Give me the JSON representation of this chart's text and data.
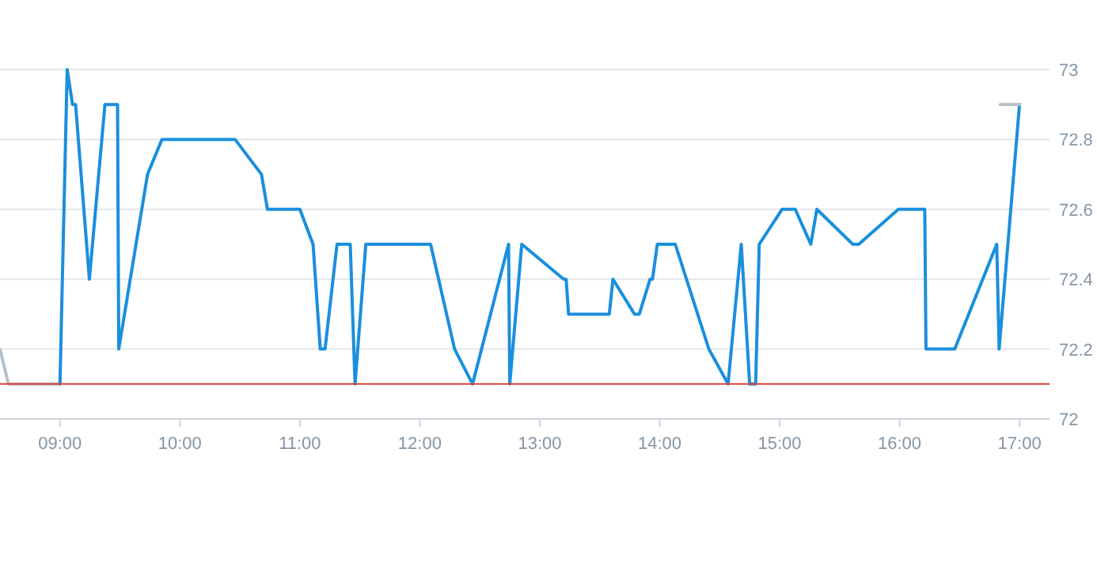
{
  "chart_data": {
    "type": "line",
    "series": [
      {
        "color": "#b5c1ca",
        "x": [
          8.5,
          8.57,
          9.0
        ],
        "values": [
          72.2,
          72.1,
          72.1
        ]
      },
      {
        "color": "#1a8fdd",
        "x": [
          9.0,
          9.06,
          9.105,
          9.13,
          9.245,
          9.375,
          9.48,
          9.49,
          9.73,
          9.85,
          10.46,
          10.68,
          10.73,
          11.0,
          11.11,
          11.17,
          11.21,
          11.31,
          11.42,
          11.46,
          11.55,
          12.09,
          12.29,
          12.44,
          12.74,
          12.75,
          12.85,
          13.2,
          13.22,
          13.24,
          13.58,
          13.61,
          13.79,
          13.83,
          13.92,
          13.94,
          13.98,
          14.13,
          14.41,
          14.57,
          14.68,
          14.75,
          14.8,
          14.83,
          15.02,
          15.13,
          15.26,
          15.31,
          15.61,
          15.66,
          15.99,
          16.21,
          16.22,
          16.46,
          16.81,
          16.83,
          17.0
        ],
        "values": [
          72.1,
          73.0,
          72.9,
          72.9,
          72.4,
          72.9,
          72.9,
          72.2,
          72.7,
          72.8,
          72.8,
          72.7,
          72.6,
          72.6,
          72.5,
          72.2,
          72.2,
          72.5,
          72.5,
          72.1,
          72.5,
          72.5,
          72.2,
          72.1,
          72.5,
          72.1,
          72.5,
          72.4,
          72.4,
          72.3,
          72.3,
          72.4,
          72.3,
          72.3,
          72.4,
          72.4,
          72.5,
          72.5,
          72.2,
          72.1,
          72.5,
          72.1,
          72.1,
          72.5,
          72.6,
          72.6,
          72.5,
          72.6,
          72.5,
          72.5,
          72.6,
          72.6,
          72.2,
          72.2,
          72.5,
          72.2,
          72.9
        ]
      },
      {
        "color": "#b5c1ca",
        "x": [
          16.84,
          17.0
        ],
        "values": [
          72.9,
          72.9
        ]
      }
    ],
    "xlim": [
      8.5,
      17.25
    ],
    "xticks": [
      {
        "value": 9,
        "label": "09:00"
      },
      {
        "value": 10,
        "label": "10:00"
      },
      {
        "value": 11,
        "label": "11:00"
      },
      {
        "value": 12,
        "label": "12:00"
      },
      {
        "value": 13,
        "label": "13:00"
      },
      {
        "value": 14,
        "label": "14:00"
      },
      {
        "value": 15,
        "label": "15:00"
      },
      {
        "value": 16,
        "label": "16:00"
      },
      {
        "value": 17,
        "label": "17:00"
      }
    ],
    "ylim": [
      72,
      73
    ],
    "yticks": [
      72,
      72.2,
      72.4,
      72.6,
      72.8,
      73
    ],
    "grid": "y",
    "marker": "none",
    "line_style": "solid",
    "ref_lines": [
      {
        "axis": "y",
        "value": 72.1,
        "color": "#d9413a"
      }
    ]
  }
}
